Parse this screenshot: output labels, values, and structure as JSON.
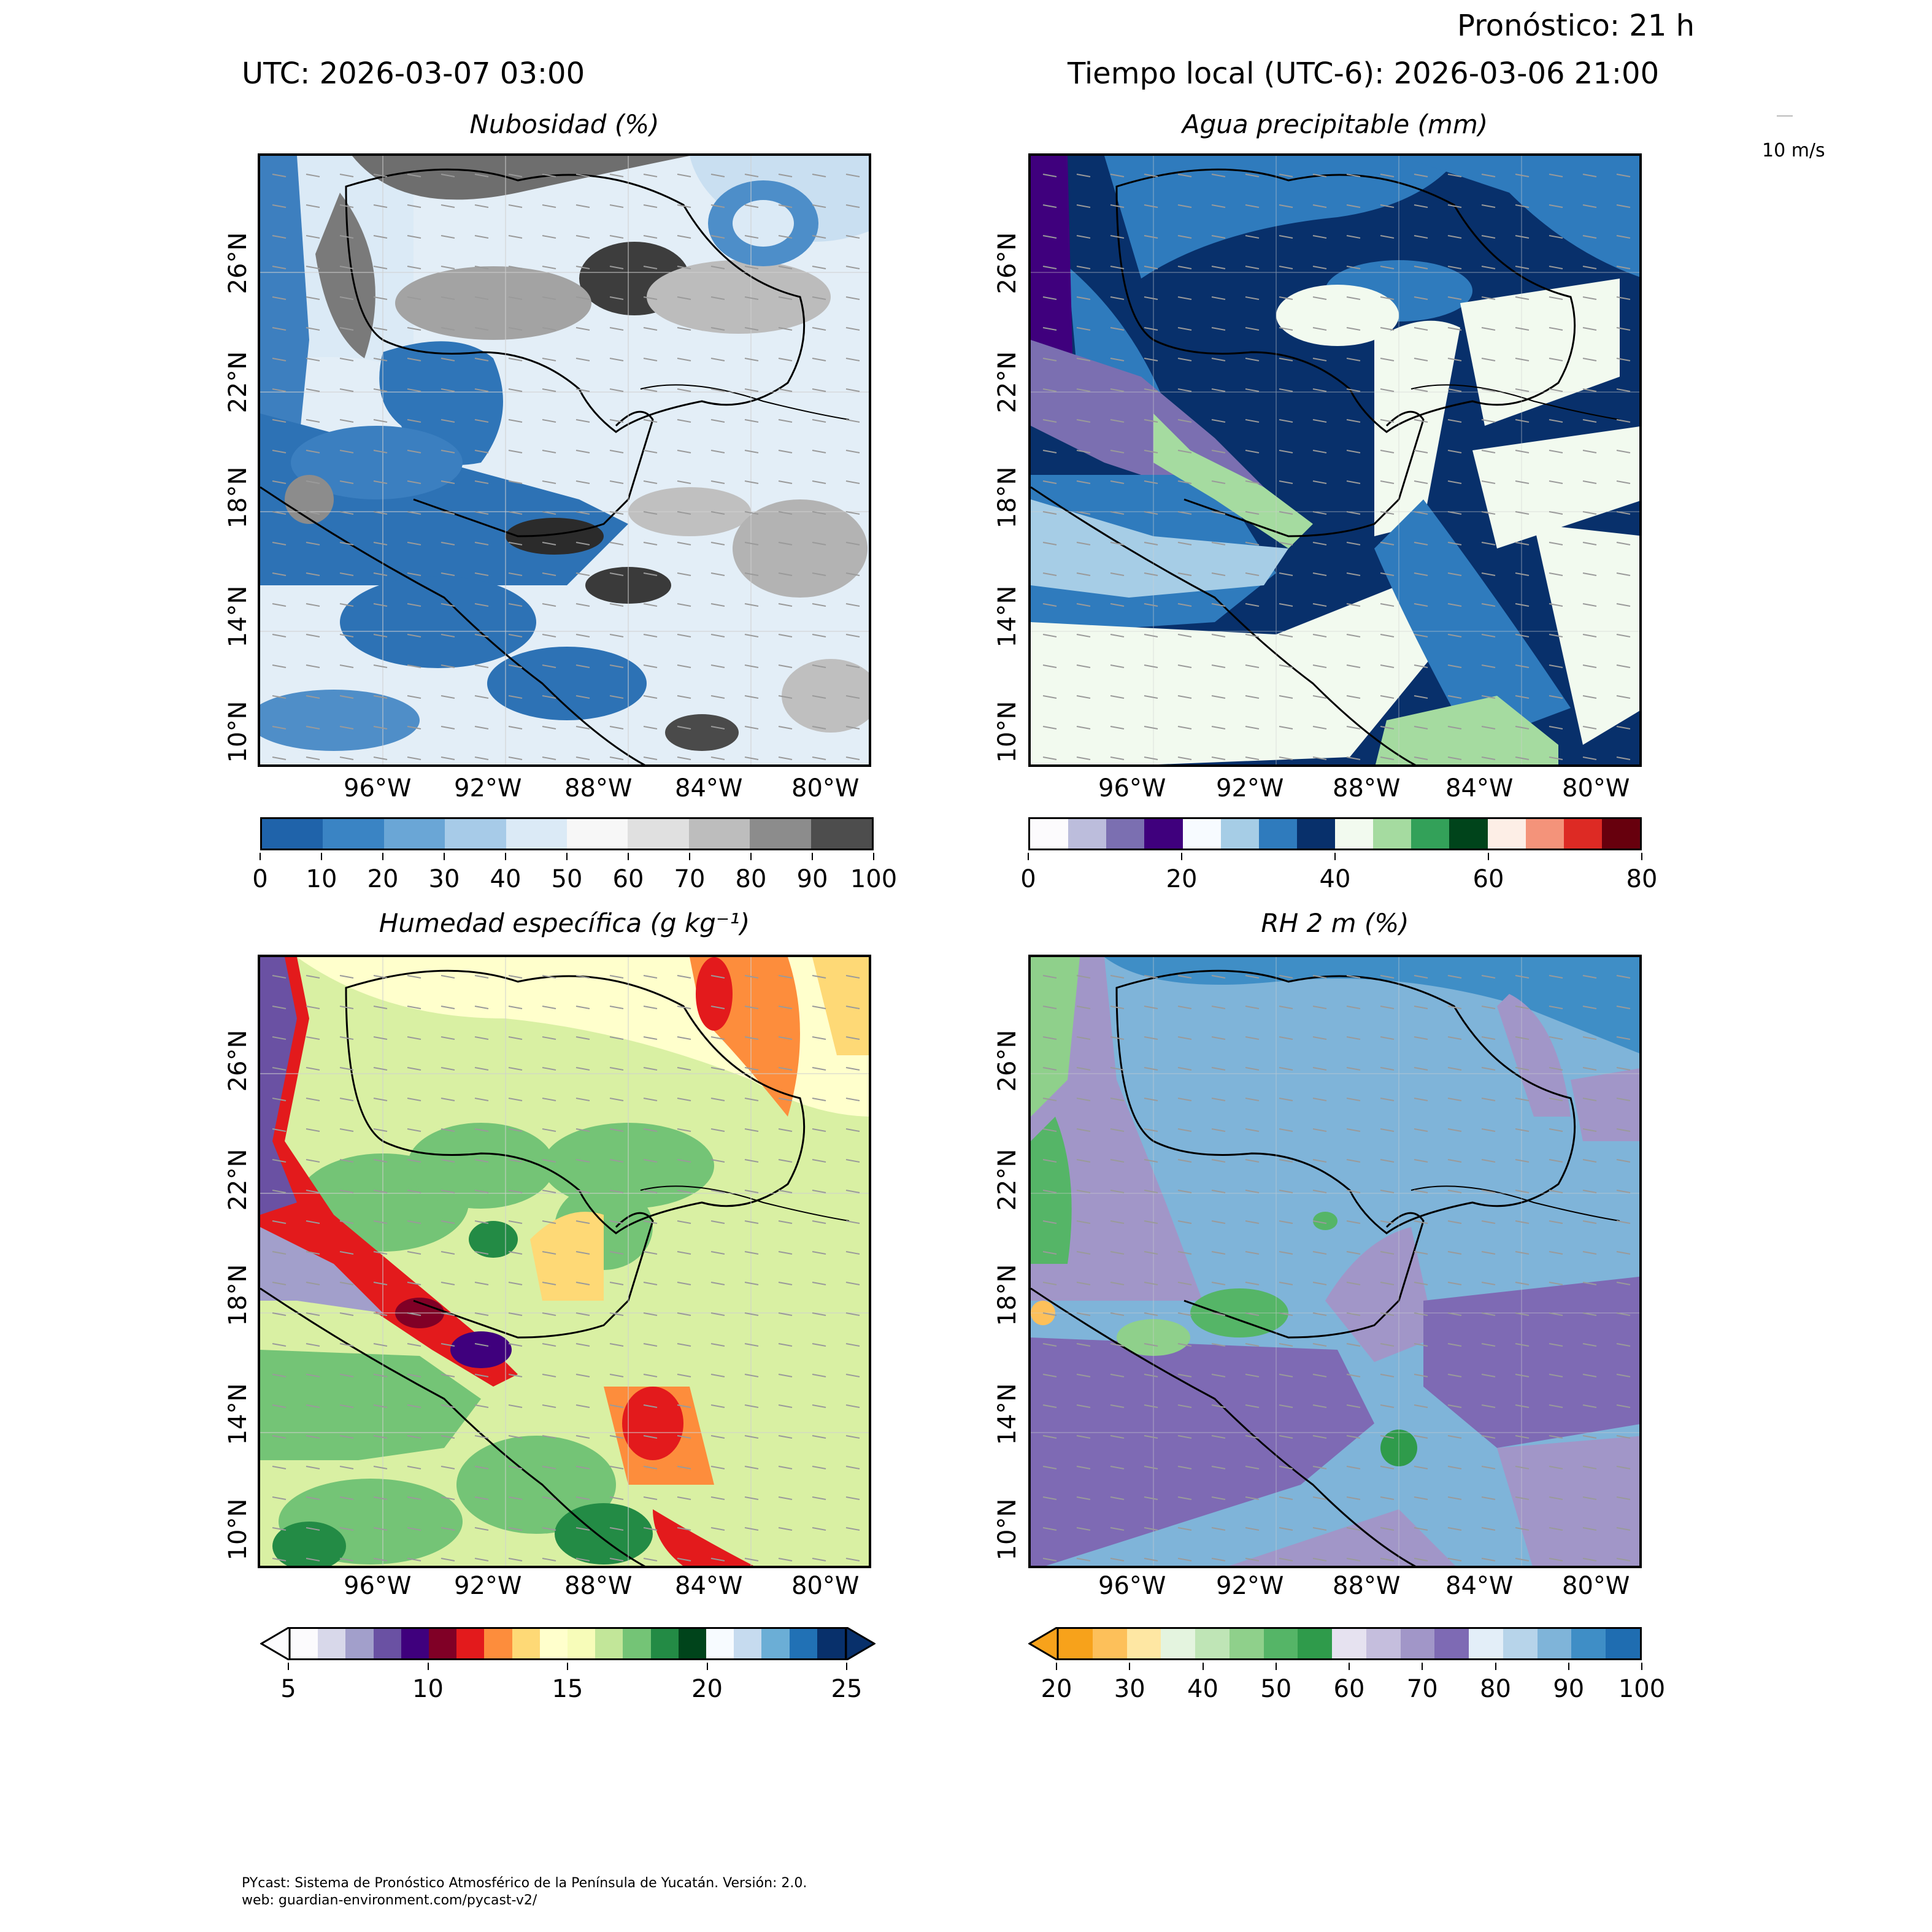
{
  "header": {
    "forecast": "Pronóstico: 21 h",
    "utc": "UTC:  2026-03-07 03:00",
    "local_time": "Tiempo local (UTC-6): 2026-03-06 21:00"
  },
  "wind_key": {
    "label": "10 m/s"
  },
  "axes": {
    "lon_ticks": [
      "96°W",
      "92°W",
      "88°W",
      "84°W",
      "80°W"
    ],
    "lat_ticks": [
      "26°N",
      "22°N",
      "18°N",
      "14°N",
      "10°N"
    ]
  },
  "panels": [
    {
      "title": "Nubosidad (%)",
      "colorbar_ticks": [
        "0",
        "10",
        "20",
        "30",
        "40",
        "50",
        "60",
        "70",
        "80",
        "90",
        "100"
      ],
      "colorbar_colors": [
        "#1f63aa",
        "#3a84c4",
        "#6aa6d6",
        "#a7cbe8",
        "#dbeaf6",
        "#f7f7f7",
        "#e0e0e0",
        "#bdbdbd",
        "#8c8c8c",
        "#4d4d4d"
      ]
    },
    {
      "title": "Agua precipitable (mm)",
      "colorbar_ticks": [
        "0",
        "20",
        "40",
        "60",
        "80"
      ],
      "colorbar_colors": [
        "#fcfbfd",
        "#bcbddc",
        "#7b6fb1",
        "#3f007d",
        "#f7fbff",
        "#a6cde6",
        "#2f7bbd",
        "#08306b",
        "#f2faef",
        "#a5dba0",
        "#33a159",
        "#00441b",
        "#fdeee6",
        "#f4937a",
        "#dd2a24",
        "#67000d"
      ]
    },
    {
      "title": "Humedad específica (g kg⁻¹)",
      "colorbar_ticks": [
        "5",
        "10",
        "15",
        "20",
        "25"
      ],
      "colorbar_colors": [
        "#fcfbfd",
        "#d8d8ea",
        "#a29fcb",
        "#6a51a3",
        "#3f007d",
        "#800026",
        "#e31a1c",
        "#fd8d3c",
        "#fed976",
        "#ffffcc",
        "#f7fcb9",
        "#c2e699",
        "#74c476",
        "#238b45",
        "#00441b",
        "#f7fbff",
        "#c6dbef",
        "#6baed6",
        "#2171b5",
        "#08306b"
      ]
    },
    {
      "title": "RH 2 m (%)",
      "colorbar_ticks": [
        "20",
        "30",
        "40",
        "50",
        "60",
        "70",
        "80",
        "90",
        "100"
      ],
      "colorbar_colors": [
        "#f7a21b",
        "#fdc05a",
        "#fee7a3",
        "#e4f4df",
        "#bfe5b6",
        "#8fd08b",
        "#55b567",
        "#2f9b4b",
        "#e6e2f0",
        "#c5bedd",
        "#a196c8",
        "#7e6ab4",
        "#e3eef8",
        "#b7d4ea",
        "#7fb4d9",
        "#3f8ec6",
        "#1f6db1"
      ]
    }
  ],
  "footer": {
    "line1": "PYcast: Sistema de Pronóstico Atmosférico de la Península de Yucatán. Versión: 2.0.",
    "line2": "web: guardian-environment.com/pycast-v2/"
  }
}
